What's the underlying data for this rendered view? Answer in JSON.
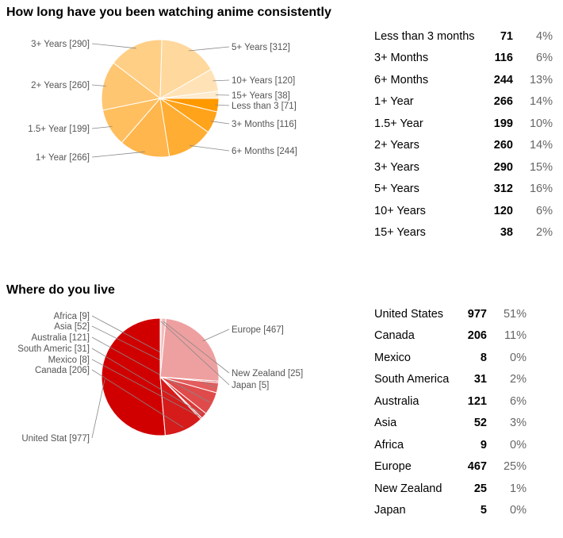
{
  "chart_data": [
    {
      "type": "pie",
      "title": "How long have you been watching anime consistently",
      "slices": [
        {
          "label": "Less than 3 months",
          "short": "Less than 3",
          "count": 71,
          "pct": "4%",
          "color": "#FF9900"
        },
        {
          "label": "3+ Months",
          "short": "3+ Months",
          "count": 116,
          "pct": "6%",
          "color": "#FFA31A"
        },
        {
          "label": "6+ Months",
          "short": "6+ Months",
          "count": 244,
          "pct": "13%",
          "color": "#FFAD33"
        },
        {
          "label": "1+ Year",
          "short": "1+ Year",
          "count": 266,
          "pct": "14%",
          "color": "#FFB64D"
        },
        {
          "label": "1.5+ Year",
          "short": "1.5+ Year",
          "count": 199,
          "pct": "10%",
          "color": "#FFBF5F"
        },
        {
          "label": "2+ Years",
          "short": "2+ Years",
          "count": 260,
          "pct": "14%",
          "color": "#FFC672"
        },
        {
          "label": "3+ Years",
          "short": "3+ Years",
          "count": 290,
          "pct": "15%",
          "color": "#FFCF86"
        },
        {
          "label": "5+ Years",
          "short": "5+ Years",
          "count": 312,
          "pct": "16%",
          "color": "#FFD89D"
        },
        {
          "label": "10+ Years",
          "short": "10+ Years",
          "count": 120,
          "pct": "6%",
          "color": "#FFE2B6"
        },
        {
          "label": "15+ Years",
          "short": "15+ Years",
          "count": 38,
          "pct": "2%",
          "color": "#FFEBCD"
        }
      ]
    },
    {
      "type": "pie",
      "title": "Where do you live",
      "slices": [
        {
          "label": "United States",
          "short": "United Stat",
          "count": 977,
          "pct": "51%",
          "color": "#D10000"
        },
        {
          "label": "Canada",
          "short": "Canada",
          "count": 206,
          "pct": "11%",
          "color": "#D61B1B"
        },
        {
          "label": "Mexico",
          "short": "Mexico",
          "count": 8,
          "pct": "0%",
          "color": "#D92A2A"
        },
        {
          "label": "South America",
          "short": "South Americ",
          "count": 31,
          "pct": "2%",
          "color": "#DC3838"
        },
        {
          "label": "Australia",
          "short": "Australia",
          "count": 121,
          "pct": "6%",
          "color": "#DF4B4B"
        },
        {
          "label": "Asia",
          "short": "Asia",
          "count": 52,
          "pct": "3%",
          "color": "#E25E5E"
        },
        {
          "label": "Africa",
          "short": "Africa",
          "count": 9,
          "pct": "0%",
          "color": "#E67070"
        },
        {
          "label": "Europe",
          "short": "Europe",
          "count": 467,
          "pct": "25%",
          "color": "#EEA0A0"
        },
        {
          "label": "New Zealand",
          "short": "New Zealand",
          "count": 25,
          "pct": "1%",
          "color": "#F3BDBD"
        },
        {
          "label": "Japan",
          "short": "Japan",
          "count": 5,
          "pct": "0%",
          "color": "#F7D4D4"
        }
      ]
    }
  ]
}
